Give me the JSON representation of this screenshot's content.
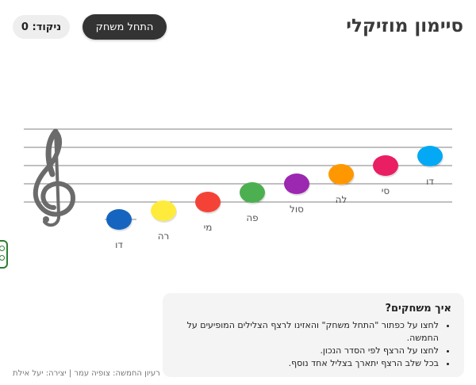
{
  "header": {
    "title": "סיימון מוזיקלי",
    "start_button_label": "התחל משחק",
    "score_text": "ניקוד: 0"
  },
  "notes": [
    {
      "label": "דו",
      "color": "#1565c0"
    },
    {
      "label": "רה",
      "color": "#ffeb3b"
    },
    {
      "label": "מי",
      "color": "#f44336"
    },
    {
      "label": "פה",
      "color": "#4caf50"
    },
    {
      "label": "סול",
      "color": "#9c27b0"
    },
    {
      "label": "לה",
      "color": "#ff9800"
    },
    {
      "label": "סי",
      "color": "#e91e63"
    },
    {
      "label": "דו",
      "color": "#03a9f4"
    }
  ],
  "instructions": {
    "title": "איך משחקים?",
    "items": [
      "לחצו על כפתור \"התחל משחק\" והאזינו לרצף הצלילים המופיעים על החמשה.",
      "לחצו על הרצף לפי הסדר הנכון.",
      "בכל שלב הרצף יתארך בצליל אחד נוסף."
    ]
  },
  "credit": "רעיון החמשה: צופיה עמר | יצירה: יעל אילת",
  "icons": [
    "treble-clef-icon",
    "side-widget-icon"
  ]
}
